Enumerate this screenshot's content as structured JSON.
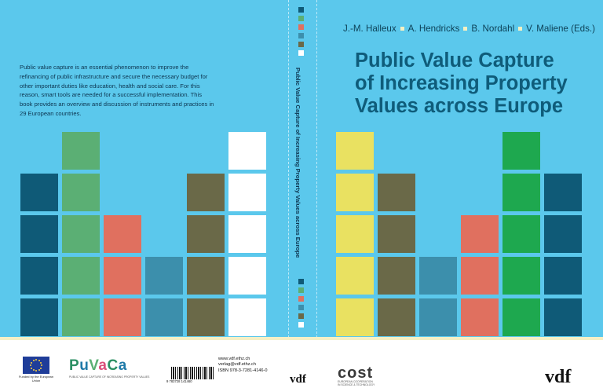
{
  "back_cover": {
    "blurb": "Public value capture is an essential phenomenon to improve the refinancing of public infrastructure and secure the necessary budget for other important duties like education, health and social care. For this reason, smart tools are needed for a successful implementation. This book provides an overview and discussion of instruments and practices in 29 European countries."
  },
  "spine": {
    "title": "Public Value Capture of Increasing Property Values across Europe"
  },
  "front_cover": {
    "authors": [
      "J.-M. Halleux",
      "A. Hendricks",
      "B. Nordahl",
      "V. Maliene (Eds.)"
    ],
    "title_lines": [
      "Public Value Capture",
      "of Increasing Property",
      "Values across Europe"
    ]
  },
  "footer": {
    "eu_label": "Funded by the European Union",
    "puvaca_logo": "PuVaCa",
    "puvaca_subtitle": "PUBLIC VALUE CAPTURE OF INCREASING PROPERTY VALUES",
    "barcode_number": "9 783728 141460",
    "website": "www.vdf.ethz.ch",
    "email": "verlag@vdf.ethz.ch",
    "isbn": "ISBN 978-3-7281-4146-0",
    "publisher_logo": "vdf",
    "cost_logo": "cost",
    "cost_subtitle_1": "EUROPEAN COOPERATION",
    "cost_subtitle_2": "IN SCIENCE & TECHNOLOGY"
  },
  "colors": {
    "background": "#5bc8ec",
    "navy": "#0f5a77",
    "light_green": "#5baf74",
    "salmon": "#e0705f",
    "steel_blue": "#3c8fac",
    "olive": "#6a6948",
    "white": "#ffffff",
    "yellow": "#e9e161",
    "bright_green": "#1ea84f"
  },
  "square_columns": [
    {
      "side": "back",
      "color": "navy",
      "count": 4
    },
    {
      "side": "back",
      "color": "light_green",
      "count": 5
    },
    {
      "side": "back",
      "color": "salmon",
      "count": 3
    },
    {
      "side": "back",
      "color": "steel_blue",
      "count": 2
    },
    {
      "side": "back",
      "color": "olive",
      "count": 4
    },
    {
      "side": "back",
      "color": "white",
      "count": 5
    },
    {
      "side": "front",
      "color": "yellow",
      "count": 5
    },
    {
      "side": "front",
      "color": "olive",
      "count": 4
    },
    {
      "side": "front",
      "color": "steel_blue",
      "count": 2
    },
    {
      "side": "front",
      "color": "salmon",
      "count": 3
    },
    {
      "side": "front",
      "color": "bright_green",
      "count": 5
    },
    {
      "side": "front",
      "color": "navy",
      "count": 4
    }
  ],
  "spine_swatches": [
    "navy",
    "light_green",
    "salmon",
    "steel_blue",
    "olive",
    "white"
  ]
}
